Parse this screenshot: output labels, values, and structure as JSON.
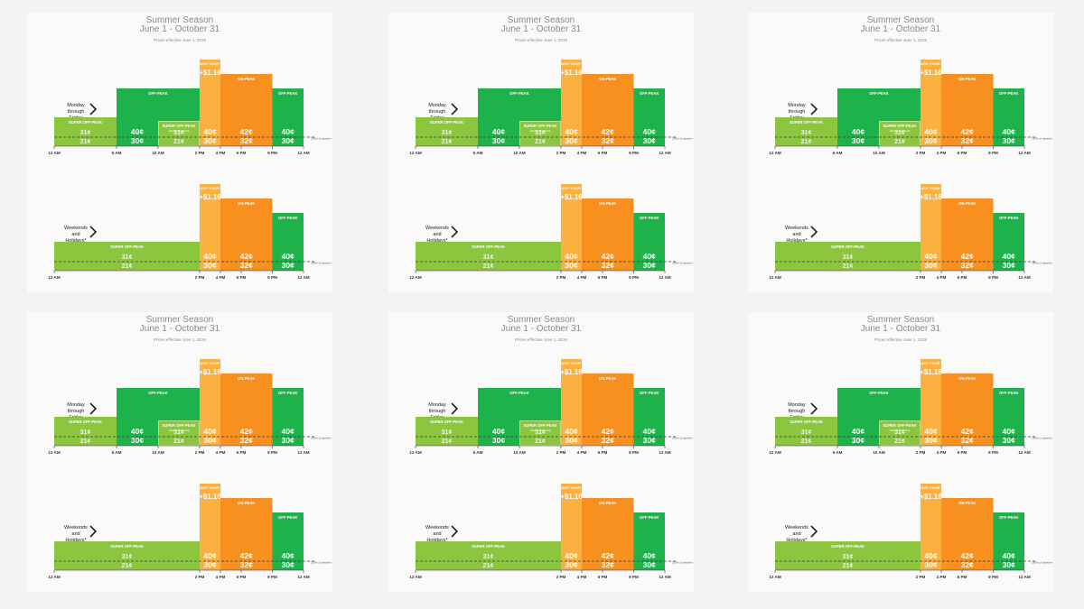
{
  "season": {
    "title": "Summer Season",
    "dates": "June 1 - October 31",
    "effective": "Prices effective June 1, 2019"
  },
  "colors": {
    "super_off_peak": "#8cc63f",
    "off_peak": "#1db24a",
    "on_peak": "#f7901e",
    "reduce_your_use": "#fbb040",
    "baseline": "#3d3d3d",
    "axis_text": "#333333",
    "arrow": "#222222"
  },
  "baseline_label": "130% of baseline",
  "chart_data": {
    "type": "bar",
    "unit": "¢ per kWh",
    "rows": [
      {
        "label": "Monday through Friday",
        "label_lines": [
          "Monday",
          "through",
          "Friday"
        ],
        "ticks": [
          "12 AM",
          "6 AM",
          "10 AM",
          "2 PM",
          "4 PM",
          "6 PM",
          "9 PM",
          "12 AM"
        ],
        "periods": [
          {
            "name": "SUPER OFF-PEAK",
            "start": 0,
            "end": 6,
            "above": "31¢",
            "below": "21¢",
            "kind": "super_off_peak"
          },
          {
            "name": "OFF-PEAK",
            "start": 6,
            "end": 14,
            "above": "",
            "below": "",
            "kind": "off_peak_wide"
          },
          {
            "name": "SUPER OFF-PEAK",
            "sub": "(March and April)",
            "start": 10,
            "end": 14,
            "above": "31¢",
            "below": "21¢",
            "kind": "super_off_peak_inset"
          },
          {
            "name": "",
            "start": 6,
            "end": 10,
            "above": "40¢",
            "below": "30¢",
            "kind": "value_only"
          },
          {
            "name": "",
            "start": 14,
            "end": 16,
            "above": "40¢",
            "below": "30¢",
            "kind": "value_only"
          },
          {
            "name": "REDUCE YOUR USE",
            "start": 14,
            "end": 16,
            "above": "+$1.16",
            "below": "",
            "kind": "reduce_your_use"
          },
          {
            "name": "ON-PEAK",
            "start": 16,
            "end": 21,
            "above": "42¢",
            "below": "32¢",
            "kind": "on_peak"
          },
          {
            "name": "OFF-PEAK",
            "start": 21,
            "end": 24,
            "above": "40¢",
            "below": "30¢",
            "kind": "off_peak"
          }
        ]
      },
      {
        "label": "Weekends and Holidays*",
        "label_lines": [
          "Weekends",
          "and",
          "Holidays*"
        ],
        "ticks": [
          "12 AM",
          "2 PM",
          "4 PM",
          "6 PM",
          "9 PM",
          "12 AM"
        ],
        "periods": [
          {
            "name": "SUPER OFF-PEAK",
            "start": 0,
            "end": 14,
            "above": "31¢",
            "below": "21¢",
            "kind": "super_off_peak"
          },
          {
            "name": "OFF-PEAK",
            "start": 14,
            "end": 16,
            "above": "40¢",
            "below": "30¢",
            "kind": "off_peak"
          },
          {
            "name": "REDUCE YOUR USE",
            "start": 14,
            "end": 16,
            "above": "+$1.16",
            "below": "",
            "kind": "reduce_your_use"
          },
          {
            "name": "ON-PEAK",
            "start": 16,
            "end": 21,
            "above": "42¢",
            "below": "32¢",
            "kind": "on_peak"
          },
          {
            "name": "OFF-PEAK",
            "start": 21,
            "end": 24,
            "above": "40¢",
            "below": "30¢",
            "kind": "off_peak"
          }
        ]
      }
    ]
  }
}
